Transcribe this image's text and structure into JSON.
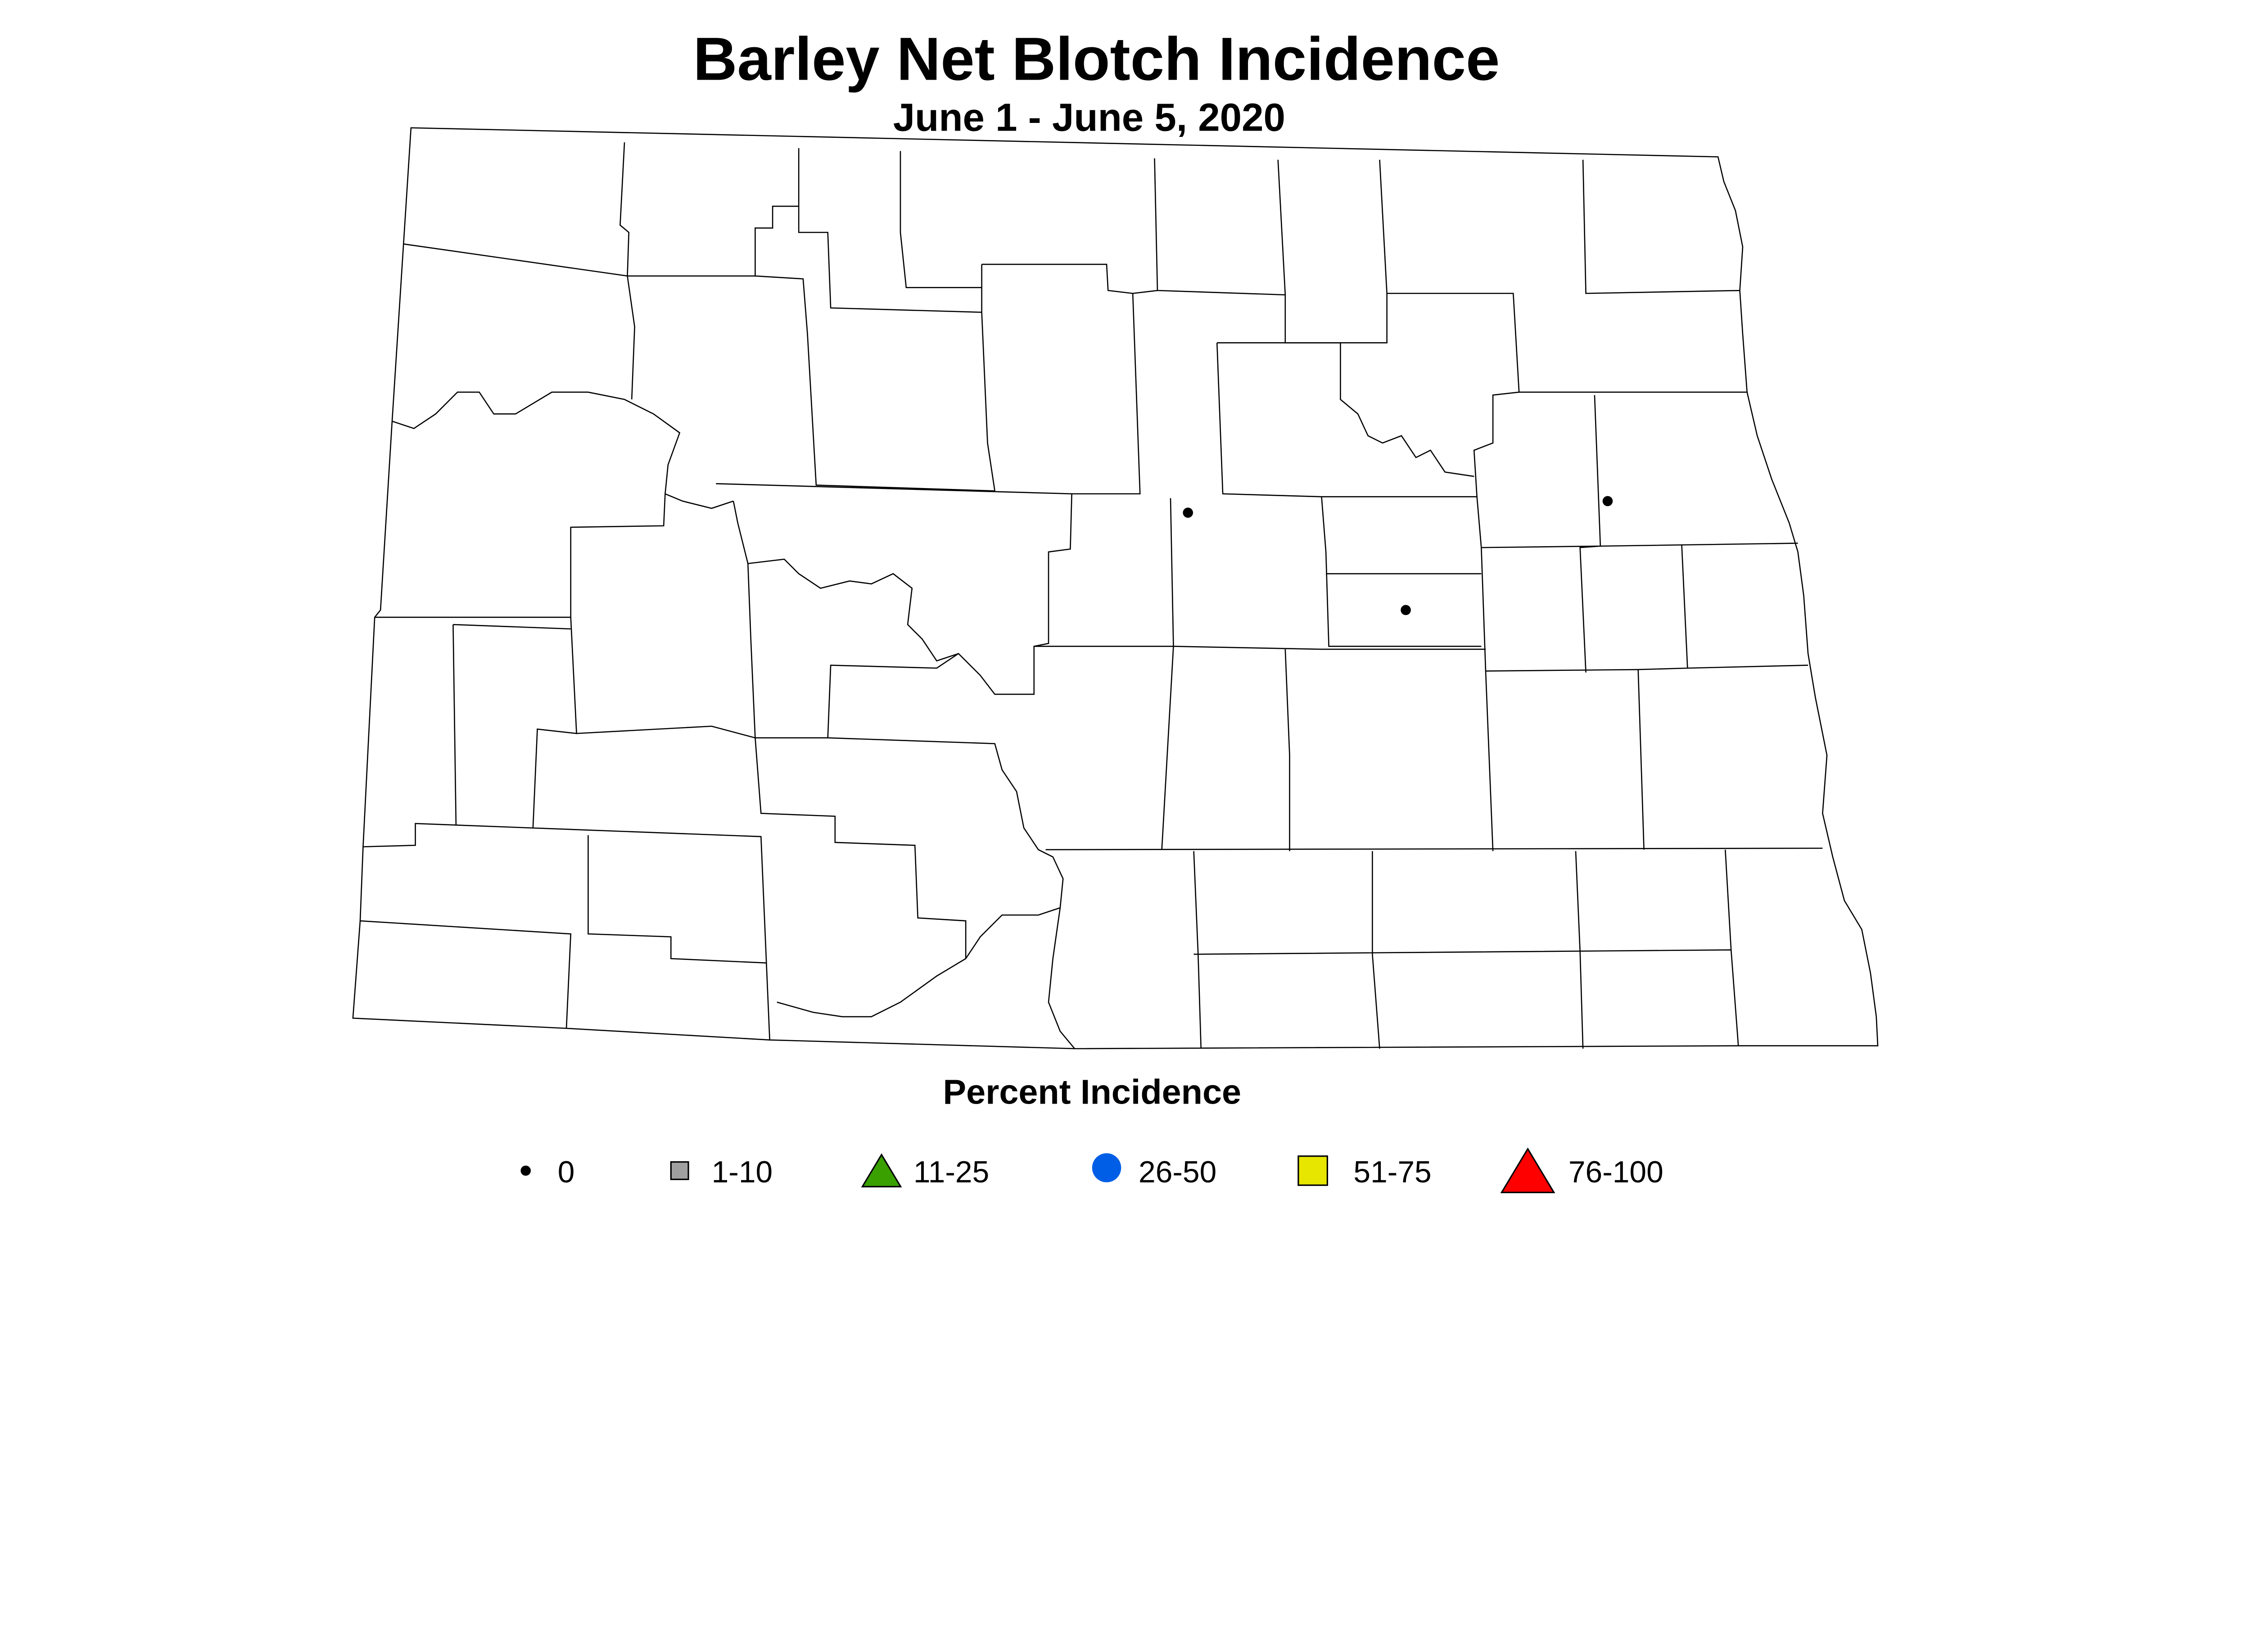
{
  "title": "Barley Net Blotch Incidence",
  "subtitle": "June 1 - June 5, 2020",
  "legend": {
    "title": "Percent Incidence",
    "items": [
      {
        "label": "0",
        "shape": "dot",
        "color": "#000000"
      },
      {
        "label": "1-10",
        "shape": "square",
        "color": "#a0a0a0"
      },
      {
        "label": "11-25",
        "shape": "triangle",
        "color": "#3aa000"
      },
      {
        "label": "26-50",
        "shape": "circle",
        "color": "#005ee6"
      },
      {
        "label": "51-75",
        "shape": "square",
        "color": "#e6e600"
      },
      {
        "label": "76-100",
        "shape": "triangle",
        "color": "#ff0000"
      }
    ]
  },
  "observations": [
    {
      "category": "0"
    },
    {
      "category": "0"
    },
    {
      "category": "0"
    }
  ]
}
